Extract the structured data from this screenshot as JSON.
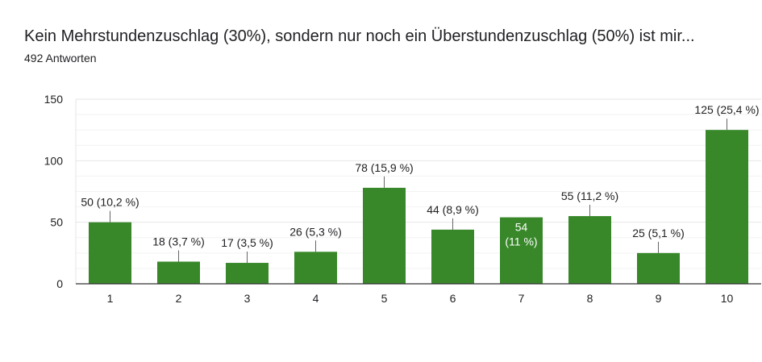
{
  "header": {
    "title": "Kein Mehrstundenzuschlag (30%), sondern nur noch ein Überstundenzuschlag (50%) ist mir...",
    "response_count": "492 Antworten"
  },
  "colors": {
    "bar": "#38882a",
    "grid": "#e6e6e6",
    "axis": "#333333",
    "text": "#202124",
    "inside_label": "#ffffff"
  },
  "chart_data": {
    "type": "bar",
    "categories": [
      "1",
      "2",
      "3",
      "4",
      "5",
      "6",
      "7",
      "8",
      "9",
      "10"
    ],
    "values": [
      50,
      18,
      17,
      26,
      78,
      44,
      54,
      55,
      25,
      125
    ],
    "data_labels": [
      "50 (10,2 %)",
      "18 (3,7 %)",
      "17 (3,5 %)",
      "26 (5,3 %)",
      "78 (15,9 %)",
      "44 (8,9 %)",
      "54 (11 %)",
      "55 (11,2 %)",
      "25 (5,1 %)",
      "125 (25,4 %)"
    ],
    "inside_label_lines": [
      [
        "54",
        "(11 %)"
      ]
    ],
    "inside_label_index": 6,
    "yticks": [
      "0",
      "50",
      "100",
      "150"
    ],
    "ylim": [
      0,
      150
    ],
    "grid": true,
    "legend": "none"
  }
}
